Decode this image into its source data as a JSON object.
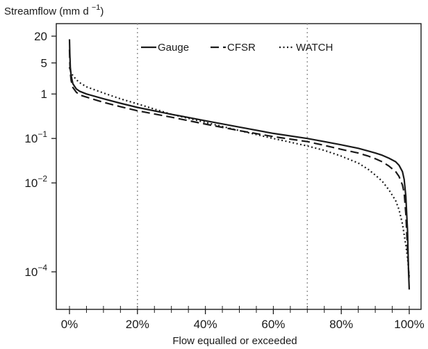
{
  "chart_data": {
    "type": "line",
    "ylabel": "Streamflow",
    "ylabel_unit": "(mm d",
    "ylabel_unit_exp": "−1",
    "ylabel_unit_close": ")",
    "xlabel": "Flow equalled or exceeded",
    "y_scale": "log",
    "xlim": [
      0,
      100
    ],
    "ylim": [
      2e-05,
      25
    ],
    "x_ticks": [
      {
        "value": 0,
        "label": "0%"
      },
      {
        "value": 20,
        "label": "20%"
      },
      {
        "value": 40,
        "label": "40%"
      },
      {
        "value": 60,
        "label": "60%"
      },
      {
        "value": 80,
        "label": "80%"
      },
      {
        "value": 100,
        "label": "100%"
      }
    ],
    "x_minor_ticks": [
      5,
      10,
      15,
      25,
      30,
      35,
      45,
      50,
      55,
      65,
      70,
      75,
      85,
      90,
      95
    ],
    "y_ticks": [
      {
        "value": 20,
        "label": "20"
      },
      {
        "value": 5,
        "label": "5"
      },
      {
        "value": 1,
        "label": "1"
      },
      {
        "value": 0.1,
        "base": "10",
        "exp": "−1"
      },
      {
        "value": 0.01,
        "base": "10",
        "exp": "−2"
      },
      {
        "value": 0.0001,
        "base": "10",
        "exp": "−4"
      }
    ],
    "vlines": [
      20,
      70
    ],
    "legend_position": "top-right",
    "series": [
      {
        "name": "Gauge",
        "style": "solid",
        "x": [
          0,
          0.1,
          0.25,
          0.5,
          1,
          2,
          3,
          5,
          10,
          15,
          20,
          30,
          40,
          50,
          60,
          70,
          75,
          80,
          85,
          88,
          90,
          92,
          94,
          96,
          97,
          98,
          98.5,
          99,
          99.5,
          99.8,
          100
        ],
        "y": [
          17,
          8,
          4,
          2.6,
          1.7,
          1.3,
          1.15,
          1.0,
          0.78,
          0.62,
          0.5,
          0.35,
          0.25,
          0.18,
          0.13,
          0.1,
          0.085,
          0.072,
          0.06,
          0.052,
          0.047,
          0.042,
          0.036,
          0.03,
          0.025,
          0.018,
          0.012,
          0.005,
          0.0008,
          0.0001,
          4e-05
        ]
      },
      {
        "name": "CFSR",
        "style": "dashed",
        "x": [
          0,
          0.1,
          0.25,
          0.5,
          1,
          2,
          3,
          5,
          10,
          15,
          20,
          30,
          40,
          50,
          60,
          70,
          75,
          80,
          85,
          88,
          90,
          92,
          94,
          96,
          97,
          98,
          98.5,
          99,
          99.5,
          100
        ],
        "y": [
          10,
          5,
          3,
          2,
          1.4,
          1.1,
          0.95,
          0.85,
          0.65,
          0.52,
          0.42,
          0.3,
          0.21,
          0.15,
          0.11,
          0.085,
          0.07,
          0.057,
          0.047,
          0.04,
          0.035,
          0.03,
          0.024,
          0.018,
          0.014,
          0.009,
          0.006,
          0.002,
          0.0003,
          6e-05
        ]
      },
      {
        "name": "WATCH",
        "style": "dotted",
        "x": [
          0,
          0.1,
          0.25,
          0.5,
          1,
          2,
          3,
          5,
          10,
          15,
          20,
          30,
          40,
          50,
          60,
          70,
          75,
          80,
          85,
          88,
          90,
          92,
          94,
          96,
          97,
          98,
          99,
          99.5,
          100
        ],
        "y": [
          4,
          3.6,
          3.3,
          3.0,
          2.6,
          2.1,
          1.8,
          1.45,
          1.05,
          0.78,
          0.6,
          0.35,
          0.23,
          0.15,
          0.1,
          0.068,
          0.054,
          0.04,
          0.028,
          0.02,
          0.015,
          0.011,
          0.007,
          0.004,
          0.0025,
          0.0012,
          0.0004,
          0.0002,
          8e-05
        ]
      }
    ]
  }
}
